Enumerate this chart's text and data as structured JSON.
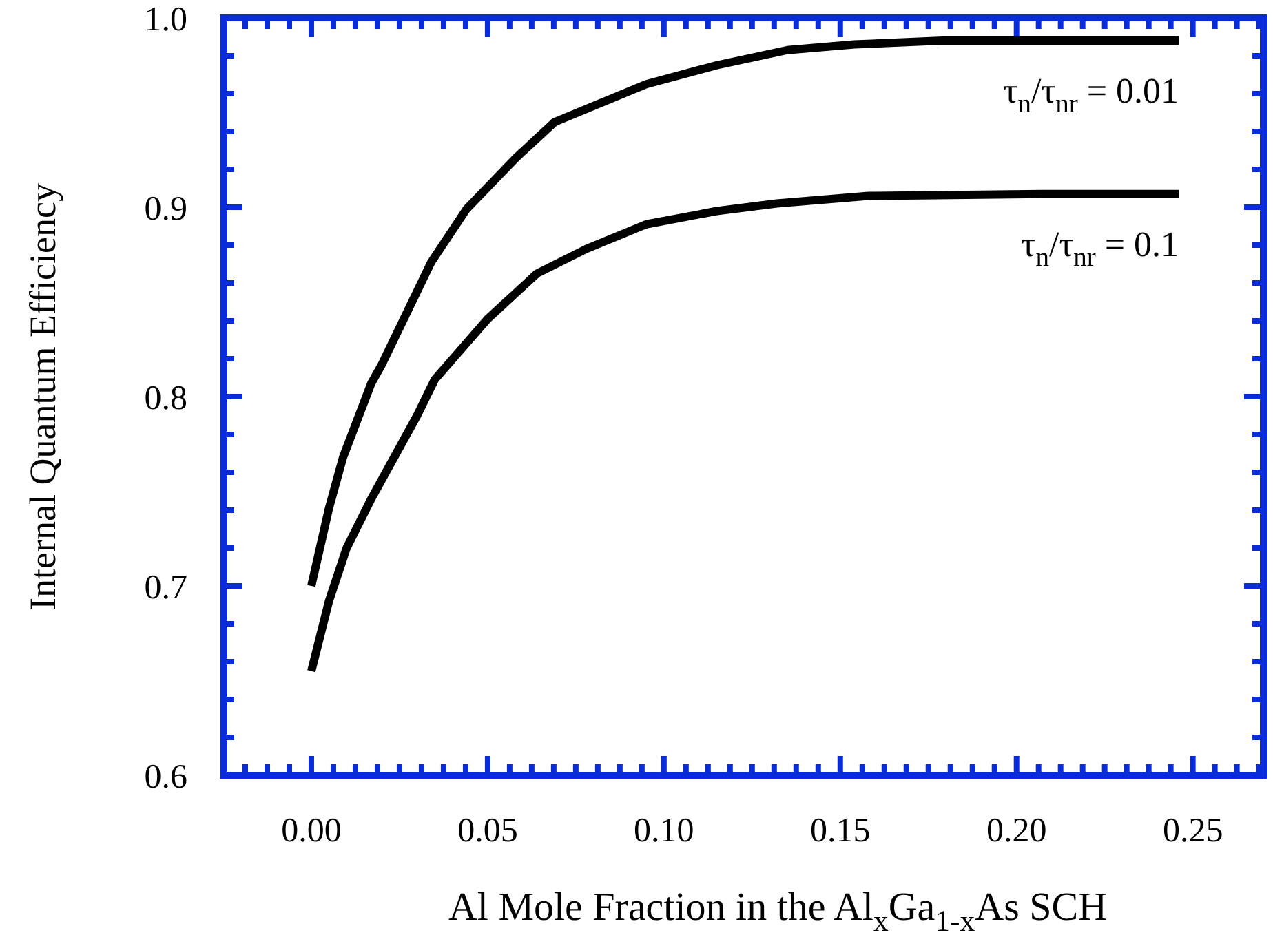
{
  "chart_data": {
    "type": "line",
    "xlabel": "Al Mole Fraction in the Al$_{x}$Ga$_{1-x}$As SCH",
    "ylabel": "Internal Quantum Efficiency",
    "xlim": [
      -0.025,
      0.27
    ],
    "ylim": [
      0.6,
      1.0
    ],
    "xticks": [
      {
        "value": -0.01875,
        "label": null
      },
      {
        "value": -0.0125,
        "label": null
      },
      {
        "value": -0.00625,
        "label": null
      },
      {
        "value": 0,
        "label": "0.00"
      },
      {
        "value": 0.00625,
        "label": null
      },
      {
        "value": 0.0125,
        "label": null
      },
      {
        "value": 0.01875,
        "label": null
      },
      {
        "value": 0.025,
        "label": null
      },
      {
        "value": 0.03125,
        "label": null
      },
      {
        "value": 0.0375,
        "label": null
      },
      {
        "value": 0.04375,
        "label": null
      },
      {
        "value": 0.05,
        "label": "0.05"
      },
      {
        "value": 0.05625,
        "label": null
      },
      {
        "value": 0.0625,
        "label": null
      },
      {
        "value": 0.06875,
        "label": null
      },
      {
        "value": 0.075,
        "label": null
      },
      {
        "value": 0.08125,
        "label": null
      },
      {
        "value": 0.0875,
        "label": null
      },
      {
        "value": 0.09375,
        "label": null
      },
      {
        "value": 0.1,
        "label": "0.10"
      },
      {
        "value": 0.10625,
        "label": null
      },
      {
        "value": 0.1125,
        "label": null
      },
      {
        "value": 0.11875,
        "label": null
      },
      {
        "value": 0.125,
        "label": null
      },
      {
        "value": 0.13125,
        "label": null
      },
      {
        "value": 0.1375,
        "label": null
      },
      {
        "value": 0.14375,
        "label": null
      },
      {
        "value": 0.15,
        "label": "0.15"
      },
      {
        "value": 0.15625,
        "label": null
      },
      {
        "value": 0.1625,
        "label": null
      },
      {
        "value": 0.16875,
        "label": null
      },
      {
        "value": 0.175,
        "label": null
      },
      {
        "value": 0.18125,
        "label": null
      },
      {
        "value": 0.1875,
        "label": null
      },
      {
        "value": 0.19375,
        "label": null
      },
      {
        "value": 0.2,
        "label": "0.20"
      },
      {
        "value": 0.20625,
        "label": null
      },
      {
        "value": 0.2125,
        "label": null
      },
      {
        "value": 0.21875,
        "label": null
      },
      {
        "value": 0.225,
        "label": null
      },
      {
        "value": 0.23125,
        "label": null
      },
      {
        "value": 0.2375,
        "label": null
      },
      {
        "value": 0.24375,
        "label": null
      },
      {
        "value": 0.25,
        "label": "0.25"
      },
      {
        "value": 0.25625,
        "label": null
      },
      {
        "value": 0.2625,
        "label": null
      },
      {
        "value": 0.26875,
        "label": null
      }
    ],
    "yticks": [
      0.6,
      {
        "value": 0.62,
        "label": null
      },
      {
        "value": 0.64,
        "label": null
      },
      {
        "value": 0.66,
        "label": null
      },
      {
        "value": 0.68,
        "label": null
      },
      0.7,
      {
        "value": 0.72,
        "label": null
      },
      {
        "value": 0.74,
        "label": null
      },
      {
        "value": 0.76,
        "label": null
      },
      {
        "value": 0.78,
        "label": null
      },
      0.8,
      {
        "value": 0.82,
        "label": null
      },
      {
        "value": 0.84,
        "label": null
      },
      {
        "value": 0.86,
        "label": null
      },
      {
        "value": 0.88,
        "label": null
      },
      0.9,
      {
        "value": 0.92,
        "label": null
      },
      {
        "value": 0.94,
        "label": null
      },
      {
        "value": 0.96,
        "label": null
      },
      {
        "value": 0.98,
        "label": null
      },
      {
        "value": 1.0,
        "label": "1.0"
      }
    ],
    "grid": false,
    "marker": "none",
    "line_style": "solid",
    "series": [
      {
        "name": "τ$_{n}$/τ$_{nr}$ = 0.01",
        "color": "#000000",
        "x": [
          0,
          0.005,
          0.009,
          0.017,
          0.02,
          0.034,
          0.044,
          0.058,
          0.069,
          0.082,
          0.095,
          0.115,
          0.135,
          0.154,
          0.179,
          0.246
        ],
        "values": [
          0.7,
          0.741,
          0.768,
          0.807,
          0.817,
          0.871,
          0.899,
          0.926,
          0.945,
          0.955,
          0.965,
          0.975,
          0.983,
          0.986,
          0.988,
          0.988
        ]
      },
      {
        "name": "τ$_{n}$/τ$_{nr}$ = 0.1",
        "color": "#000000",
        "x": [
          0,
          0.005,
          0.01,
          0.017,
          0.03,
          0.035,
          0.05,
          0.064,
          0.078,
          0.095,
          0.115,
          0.132,
          0.158,
          0.207,
          0.246
        ],
        "values": [
          0.655,
          0.692,
          0.72,
          0.746,
          0.79,
          0.809,
          0.841,
          0.865,
          0.878,
          0.891,
          0.898,
          0.902,
          0.906,
          0.907,
          0.907
        ]
      }
    ]
  }
}
